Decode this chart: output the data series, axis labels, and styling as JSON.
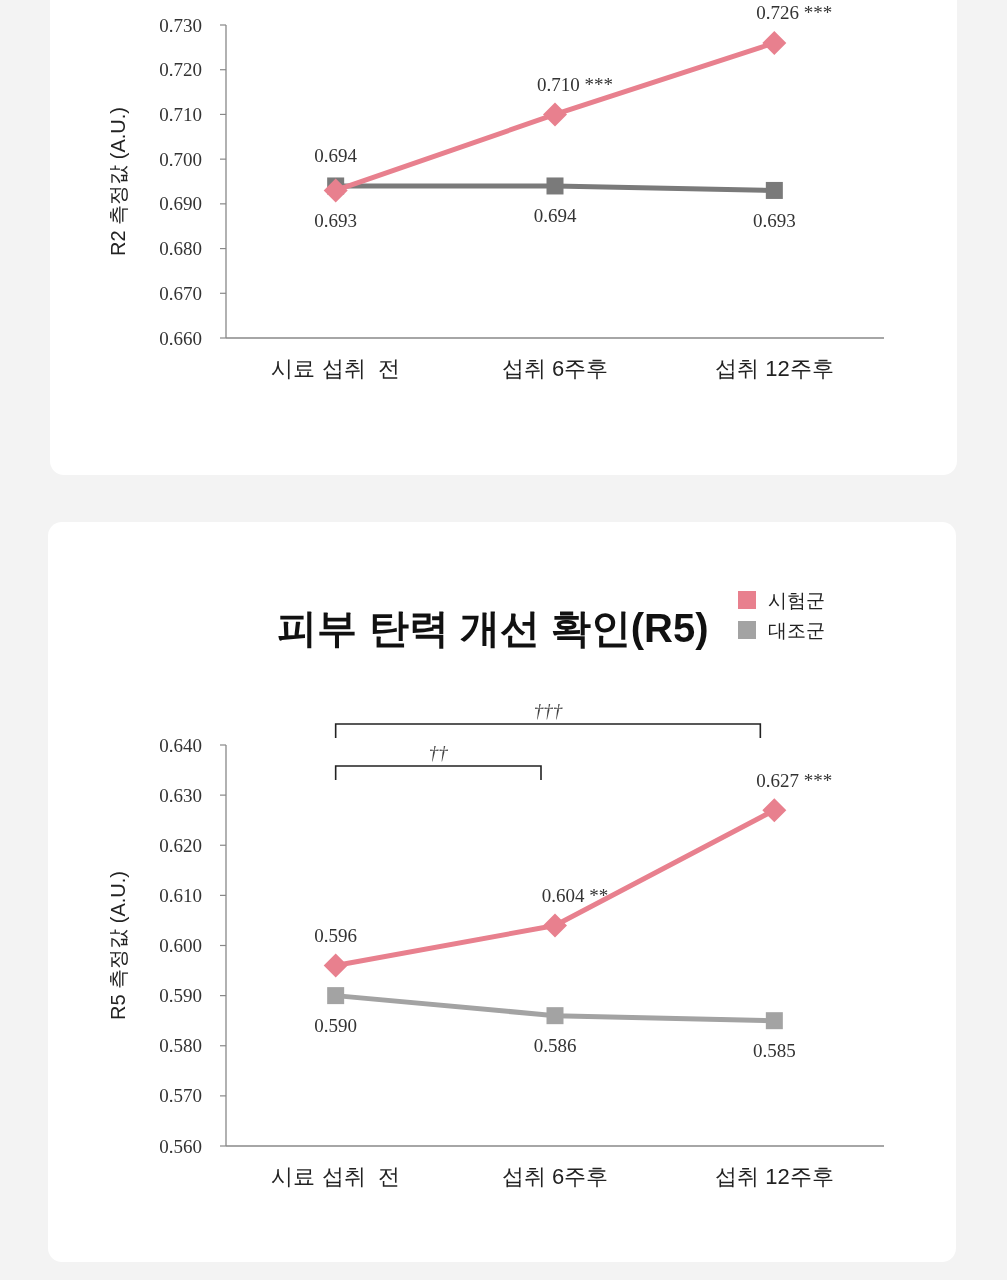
{
  "chart_data": [
    {
      "type": "line",
      "ylabel": "R2 측정값 (A.U.)",
      "categories": [
        "시료 섭취  전",
        "섭취 6주후",
        "섭취 12주후"
      ],
      "ylim": [
        0.66,
        0.73
      ],
      "yticks": [
        {
          "value": 0.66,
          "label": "0.660"
        },
        {
          "value": 0.67,
          "label": "0.670"
        },
        {
          "value": 0.68,
          "label": "0.680"
        },
        {
          "value": 0.69,
          "label": "0.690"
        },
        {
          "value": 0.7,
          "label": "0.700"
        },
        {
          "value": 0.71,
          "label": "0.710"
        },
        {
          "value": 0.72,
          "label": "0.720"
        },
        {
          "value": 0.73,
          "label": "0.730"
        }
      ],
      "grid": false,
      "legend": false,
      "series": [
        {
          "color": "#e8808e",
          "marker": "diamond",
          "values": [
            0.693,
            0.71,
            0.726
          ],
          "value_labels": [
            "0.693",
            "0.710 ***",
            "0.726 ***"
          ]
        },
        {
          "color": "#7a7a7a",
          "marker": "square",
          "values": [
            0.694,
            0.694,
            0.693
          ],
          "value_labels": [
            "0.694",
            "0.694",
            "0.693"
          ]
        }
      ]
    },
    {
      "type": "line",
      "title": "피부 탄력 개선 확인(R5)",
      "ylabel": "R5 측정값 (A.U.)",
      "categories": [
        "시료 섭취  전",
        "섭취 6주후",
        "섭취 12주후"
      ],
      "ylim": [
        0.56,
        0.64
      ],
      "yticks": [
        {
          "value": 0.56,
          "label": "0.560"
        },
        {
          "value": 0.57,
          "label": "0.570"
        },
        {
          "value": 0.58,
          "label": "0.580"
        },
        {
          "value": 0.59,
          "label": "0.590"
        },
        {
          "value": 0.6,
          "label": "0.600"
        },
        {
          "value": 0.61,
          "label": "0.610"
        },
        {
          "value": 0.62,
          "label": "0.620"
        },
        {
          "value": 0.63,
          "label": "0.630"
        },
        {
          "value": 0.64,
          "label": "0.640"
        }
      ],
      "grid": false,
      "legend": "top right",
      "annotations": [
        "†††",
        "††"
      ],
      "series": [
        {
          "name": "시험군",
          "color": "#e8808e",
          "marker": "diamond",
          "values": [
            0.596,
            0.604,
            0.627
          ],
          "value_labels": [
            "0.596",
            "0.604 **",
            "0.627 ***"
          ]
        },
        {
          "name": "대조군",
          "color": "#a3a3a3",
          "marker": "square",
          "values": [
            0.59,
            0.586,
            0.585
          ],
          "value_labels": [
            "0.590",
            "0.586",
            "0.585"
          ]
        }
      ]
    }
  ]
}
